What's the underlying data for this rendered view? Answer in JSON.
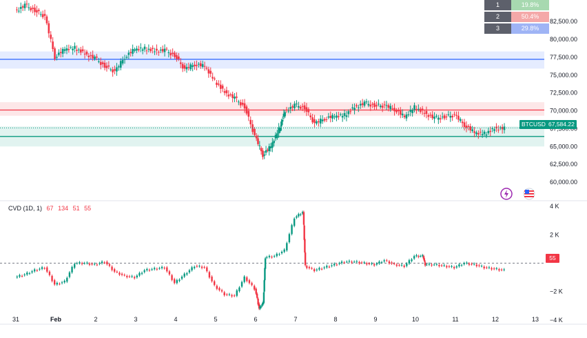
{
  "chart_data": {
    "type": "candlestick",
    "symbol": "BTCUSD",
    "last_price": "67,584.22",
    "price_panel": {
      "ylim": [
        57500,
        85500
      ],
      "y_ticks": [
        "60,000.00",
        "62,500.00",
        "65,000.00",
        "67,500.00",
        "70,000.00",
        "72,500.00",
        "75,000.00",
        "77,500.00",
        "80,000.00",
        "82,500.00"
      ],
      "y_tick_values": [
        60000,
        62500,
        65000,
        67500,
        70000,
        72500,
        75000,
        77500,
        80000,
        82500
      ],
      "zones": [
        {
          "label": "resistance-upper",
          "low": 75900,
          "high": 78300,
          "line": 77200,
          "color": "#2962ff"
        },
        {
          "label": "resistance",
          "low": 69300,
          "high": 71200,
          "line": 70100,
          "color": "#f23645"
        },
        {
          "label": "support",
          "low": 65000,
          "high": 67800,
          "line": 66400,
          "color": "#089981"
        }
      ],
      "series_close": [
        [
          0,
          83900
        ],
        [
          0.25,
          84800
        ],
        [
          0.5,
          84000
        ],
        [
          0.75,
          83200
        ],
        [
          1,
          77500
        ],
        [
          1.25,
          78600
        ],
        [
          1.5,
          78800
        ],
        [
          1.75,
          78000
        ],
        [
          2,
          77400
        ],
        [
          2.25,
          76200
        ],
        [
          2.5,
          75500
        ],
        [
          2.75,
          77500
        ],
        [
          3,
          78600
        ],
        [
          3.25,
          78700
        ],
        [
          3.5,
          78400
        ],
        [
          3.75,
          78500
        ],
        [
          4,
          77700
        ],
        [
          4.25,
          75800
        ],
        [
          4.5,
          76500
        ],
        [
          4.75,
          76200
        ],
        [
          5,
          74200
        ],
        [
          5.25,
          72600
        ],
        [
          5.5,
          71800
        ],
        [
          5.75,
          70500
        ],
        [
          6,
          66500
        ],
        [
          6.2,
          63800
        ],
        [
          6.4,
          65000
        ],
        [
          6.6,
          67400
        ],
        [
          6.75,
          69900
        ],
        [
          7,
          70800
        ],
        [
          7.25,
          70400
        ],
        [
          7.5,
          68200
        ],
        [
          7.75,
          68900
        ],
        [
          8,
          69200
        ],
        [
          8.25,
          69400
        ],
        [
          8.5,
          70500
        ],
        [
          8.75,
          71100
        ],
        [
          9,
          70700
        ],
        [
          9.25,
          70700
        ],
        [
          9.5,
          70200
        ],
        [
          9.75,
          69100
        ],
        [
          10,
          70500
        ],
        [
          10.25,
          69700
        ],
        [
          10.5,
          69000
        ],
        [
          10.75,
          69100
        ],
        [
          11,
          69400
        ],
        [
          11.25,
          68000
        ],
        [
          11.5,
          66900
        ],
        [
          11.75,
          66800
        ],
        [
          12,
          67500
        ],
        [
          12.25,
          67600
        ]
      ]
    },
    "cvd_panel": {
      "title": "CVD (1D, 1)",
      "values_text": [
        "67",
        "134",
        "51",
        "55"
      ],
      "last_value": "55",
      "ylim": [
        -4300,
        4300
      ],
      "y_ticks": [
        "4 K",
        "2 K",
        "0",
        "−2 K",
        "−4 K"
      ],
      "y_tick_values": [
        4000,
        2000,
        0,
        -2000,
        -4000
      ],
      "y_tick_show": [
        true,
        true,
        false,
        true,
        true
      ],
      "series": [
        [
          0,
          -1000
        ],
        [
          0.25,
          -800
        ],
        [
          0.5,
          -500
        ],
        [
          0.75,
          -300
        ],
        [
          1,
          -1500
        ],
        [
          1.25,
          -1300
        ],
        [
          1.5,
          0
        ],
        [
          1.75,
          0
        ],
        [
          2,
          -100
        ],
        [
          2.25,
          100
        ],
        [
          2.5,
          -600
        ],
        [
          2.75,
          -900
        ],
        [
          3,
          -1000
        ],
        [
          3.25,
          -500
        ],
        [
          3.5,
          -400
        ],
        [
          3.75,
          -300
        ],
        [
          4,
          -1400
        ],
        [
          4.25,
          -800
        ],
        [
          4.5,
          -200
        ],
        [
          4.75,
          -300
        ],
        [
          5,
          -1600
        ],
        [
          5.25,
          -2200
        ],
        [
          5.5,
          -2300
        ],
        [
          5.75,
          -1000
        ],
        [
          6,
          -1800
        ],
        [
          6.1,
          -3200
        ],
        [
          6.2,
          -2800
        ],
        [
          6.25,
          400
        ],
        [
          6.5,
          500
        ],
        [
          6.75,
          900
        ],
        [
          7,
          3200
        ],
        [
          7.2,
          3600
        ],
        [
          7.25,
          -200
        ],
        [
          7.5,
          -500
        ],
        [
          7.75,
          -300
        ],
        [
          8,
          -100
        ],
        [
          8.25,
          100
        ],
        [
          8.5,
          100
        ],
        [
          8.75,
          0
        ],
        [
          9,
          -100
        ],
        [
          9.25,
          200
        ],
        [
          9.5,
          -100
        ],
        [
          9.75,
          -200
        ],
        [
          10,
          500
        ],
        [
          10.2,
          500
        ],
        [
          10.25,
          -100
        ],
        [
          10.5,
          -100
        ],
        [
          10.75,
          -200
        ],
        [
          11,
          -300
        ],
        [
          11.25,
          0
        ],
        [
          11.5,
          -100
        ],
        [
          11.75,
          -300
        ],
        [
          12,
          -400
        ],
        [
          12.25,
          -500
        ]
      ]
    },
    "x_ticks": [
      "31",
      "Feb",
      "2",
      "3",
      "4",
      "5",
      "6",
      "7",
      "8",
      "9",
      "10",
      "11",
      "12",
      "13"
    ],
    "x_tick_values": [
      0,
      1,
      2,
      3,
      4,
      5,
      6,
      7,
      8,
      9,
      10,
      11,
      12,
      13
    ],
    "stats_table": [
      {
        "idx": "1",
        "pct": "19.8%",
        "color": "#a7d9b0"
      },
      {
        "idx": "2",
        "pct": "50.4%",
        "color": "#f4a8a8"
      },
      {
        "idx": "3",
        "pct": "29.8%",
        "color": "#9fb4f5"
      }
    ],
    "colors": {
      "up": "#089981",
      "down": "#f23645",
      "grid": "#eef0f3",
      "axis_text": "#131722"
    }
  }
}
